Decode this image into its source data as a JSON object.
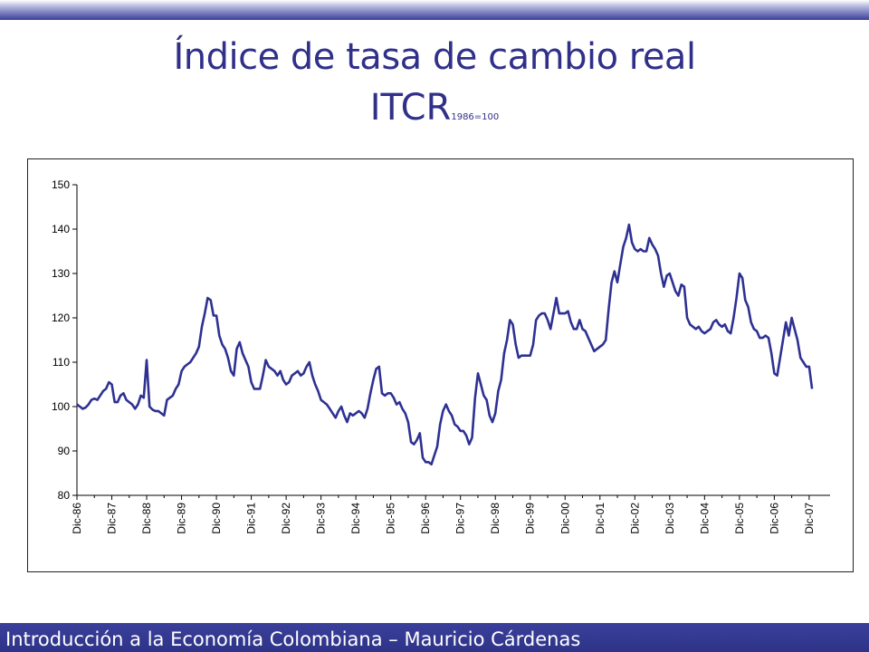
{
  "header": {
    "title": "Índice de tasa de cambio real",
    "subtitle_main": "ITCR",
    "subtitle_sub": "1986=100"
  },
  "footer": {
    "text": "Introducción a la Economía Colombiana – Mauricio Cárdenas"
  },
  "colors": {
    "title": "#30308a",
    "line": "#2e3192",
    "bar": "#3a3f9a"
  },
  "chart_data": {
    "type": "line",
    "title": "",
    "xlabel": "",
    "ylabel": "",
    "ylim": [
      80,
      150
    ],
    "yticks": [
      80,
      90,
      100,
      110,
      120,
      130,
      140,
      150
    ],
    "grid": false,
    "legend": "none",
    "x_tick_labels": [
      "Dic-86",
      "Dic-87",
      "Dic-88",
      "Dic-89",
      "Dic-90",
      "Dic-91",
      "Dic-92",
      "Dic-93",
      "Dic-94",
      "Dic-95",
      "Dic-96",
      "Dic-97",
      "Dic-98",
      "Dic-99",
      "Dic-00",
      "Dic-01",
      "Dic-02",
      "Dic-03",
      "Dic-04",
      "Dic-05",
      "Dic-06",
      "Dic-07"
    ],
    "series": [
      {
        "values": [
          100.5,
          100,
          99.5,
          99.8,
          100.5,
          101.5,
          101.8,
          101.5,
          102.5,
          103.5,
          104,
          105.5,
          105,
          101,
          101,
          102.5,
          103,
          101.5,
          101,
          100.5,
          99.5,
          100.5,
          102.5,
          102,
          110.5,
          100,
          99.3,
          99,
          99,
          98.5,
          98,
          101.5,
          102,
          102.5,
          104,
          105,
          108,
          109,
          109.5,
          110,
          111,
          112,
          113.5,
          118,
          121,
          124.5,
          124,
          120.5,
          120.5,
          116,
          114,
          113,
          111,
          108,
          107,
          113,
          114.5,
          112,
          110.5,
          109,
          105.5,
          104,
          104,
          104,
          107,
          110.5,
          109,
          108.5,
          108,
          107,
          108,
          106,
          105,
          105.5,
          107,
          107.5,
          108,
          107,
          107.5,
          109,
          110,
          107,
          105,
          103.5,
          101.5,
          101,
          100.5,
          99.5,
          98.5,
          97.5,
          99,
          100,
          98,
          96.5,
          98.5,
          98,
          98.5,
          99,
          98.5,
          97.5,
          99.5,
          103,
          106,
          108.5,
          109,
          103,
          102.5,
          103,
          103,
          102,
          100.5,
          101,
          99.5,
          98.5,
          96.5,
          92,
          91.5,
          92.5,
          94,
          88.5,
          87.5,
          87.5,
          87,
          89,
          91,
          96,
          99,
          100.5,
          99,
          98,
          96,
          95.5,
          94.5,
          94.5,
          93.5,
          91.5,
          93,
          102,
          107.5,
          105,
          102.5,
          101.5,
          98,
          96.5,
          98.5,
          103.5,
          106,
          112,
          115,
          119.5,
          118.5,
          114,
          111,
          111.5,
          111.5,
          111.5,
          111.5,
          114,
          119.5,
          120.5,
          121,
          121,
          119.5,
          117.5,
          121,
          124.5,
          121,
          121,
          121,
          121.5,
          119,
          117.5,
          117.5,
          119.5,
          117.5,
          117,
          115.5,
          114,
          112.5,
          113,
          113.5,
          114,
          115,
          122,
          128,
          130.5,
          128,
          132,
          136,
          138,
          141,
          137,
          135.5,
          135,
          135.5,
          135,
          135,
          138,
          136.5,
          135.5,
          134,
          130,
          127,
          129.5,
          130,
          128,
          126,
          125,
          127.5,
          127,
          120,
          118.5,
          118,
          117.5,
          118,
          117,
          116.5,
          117,
          117.5,
          119,
          119.5,
          118.5,
          118,
          118.5,
          117,
          116.5,
          120,
          124.5,
          130,
          129,
          124,
          122.5,
          119,
          117.5,
          117,
          115.5,
          115.5,
          116,
          115.5,
          112,
          107.5,
          107,
          111,
          115,
          119,
          116,
          120,
          117.5,
          115,
          111,
          110,
          109,
          109,
          104
        ]
      }
    ]
  }
}
